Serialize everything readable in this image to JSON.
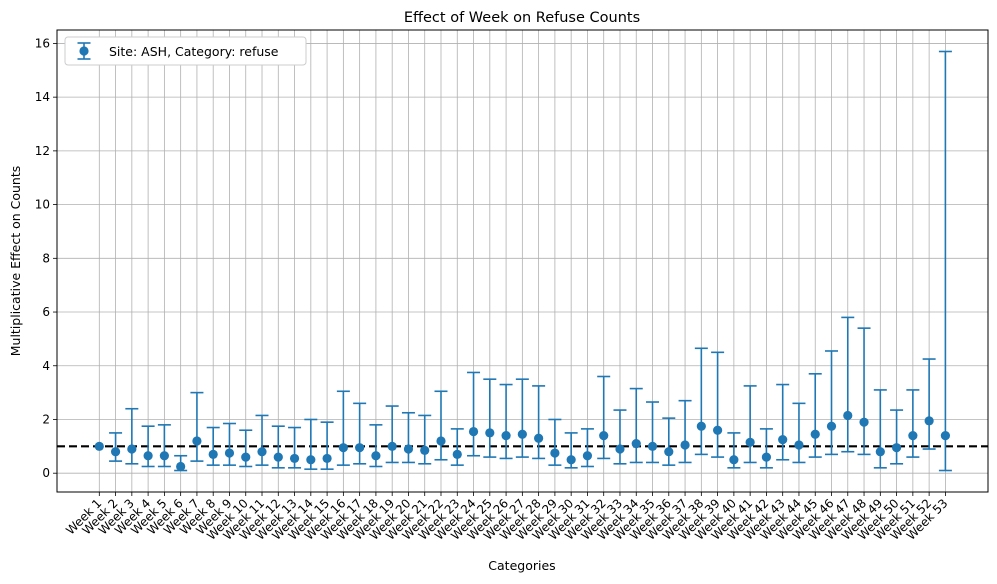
{
  "chart_data": {
    "type": "errorbar",
    "title": "Effect of Week on Refuse Counts",
    "xlabel": "Categories",
    "ylabel": "Multiplicative Effect on Counts",
    "ylim": [
      -0.7,
      16.5
    ],
    "yticks": [
      0,
      2,
      4,
      6,
      8,
      10,
      12,
      14,
      16
    ],
    "grid": true,
    "legend_position": "top-left",
    "reference_line": {
      "y": 1.0,
      "style": "dashed",
      "color": "#000000"
    },
    "series": [
      {
        "name": "Site: ASH, Category: refuse",
        "color": "#1f77b4"
      }
    ],
    "categories": [
      "Week 1",
      "Week 2",
      "Week 3",
      "Week 4",
      "Week 5",
      "Week 6",
      "Week 7",
      "Week 8",
      "Week 9",
      "Week 10",
      "Week 11",
      "Week 12",
      "Week 13",
      "Week 14",
      "Week 15",
      "Week 16",
      "Week 17",
      "Week 18",
      "Week 19",
      "Week 20",
      "Week 21",
      "Week 22",
      "Week 23",
      "Week 24",
      "Week 25",
      "Week 26",
      "Week 27",
      "Week 28",
      "Week 29",
      "Week 30",
      "Week 31",
      "Week 32",
      "Week 33",
      "Week 34",
      "Week 35",
      "Week 36",
      "Week 37",
      "Week 38",
      "Week 39",
      "Week 40",
      "Week 41",
      "Week 42",
      "Week 43",
      "Week 44",
      "Week 45",
      "Week 46",
      "Week 47",
      "Week 48",
      "Week 49",
      "Week 50",
      "Week 51",
      "Week 52",
      "Week 53"
    ],
    "values": [
      1.0,
      0.8,
      0.9,
      0.65,
      0.65,
      0.25,
      1.2,
      0.7,
      0.75,
      0.6,
      0.8,
      0.6,
      0.55,
      0.5,
      0.55,
      0.95,
      0.95,
      0.65,
      1.0,
      0.9,
      0.85,
      1.2,
      0.7,
      1.55,
      1.5,
      1.4,
      1.45,
      1.3,
      0.75,
      0.5,
      0.65,
      1.4,
      0.9,
      1.1,
      1.0,
      0.8,
      1.05,
      1.75,
      1.6,
      0.5,
      1.15,
      0.6,
      1.25,
      1.05,
      1.45,
      1.75,
      2.15,
      1.9,
      0.8,
      0.95,
      1.4,
      1.95,
      1.4
    ],
    "lower": [
      1.0,
      0.45,
      0.35,
      0.25,
      0.25,
      0.1,
      0.45,
      0.3,
      0.3,
      0.25,
      0.3,
      0.2,
      0.2,
      0.15,
      0.15,
      0.3,
      0.35,
      0.25,
      0.4,
      0.4,
      0.35,
      0.5,
      0.3,
      0.65,
      0.6,
      0.55,
      0.6,
      0.55,
      0.3,
      0.2,
      0.25,
      0.55,
      0.35,
      0.4,
      0.4,
      0.3,
      0.4,
      0.7,
      0.6,
      0.2,
      0.4,
      0.2,
      0.5,
      0.4,
      0.6,
      0.7,
      0.8,
      0.7,
      0.2,
      0.35,
      0.6,
      0.9,
      0.1
    ],
    "upper": [
      1.0,
      1.5,
      2.4,
      1.75,
      1.8,
      0.65,
      3.0,
      1.7,
      1.85,
      1.6,
      2.15,
      1.75,
      1.7,
      2.0,
      1.9,
      3.05,
      2.6,
      1.8,
      2.5,
      2.25,
      2.15,
      3.05,
      1.65,
      3.75,
      3.5,
      3.3,
      3.5,
      3.25,
      2.0,
      1.5,
      1.65,
      3.6,
      2.35,
      3.15,
      2.65,
      2.05,
      2.7,
      4.65,
      4.5,
      1.5,
      3.25,
      1.65,
      3.3,
      2.6,
      3.7,
      4.55,
      5.8,
      5.4,
      3.1,
      2.35,
      3.1,
      4.25,
      15.7
    ]
  }
}
